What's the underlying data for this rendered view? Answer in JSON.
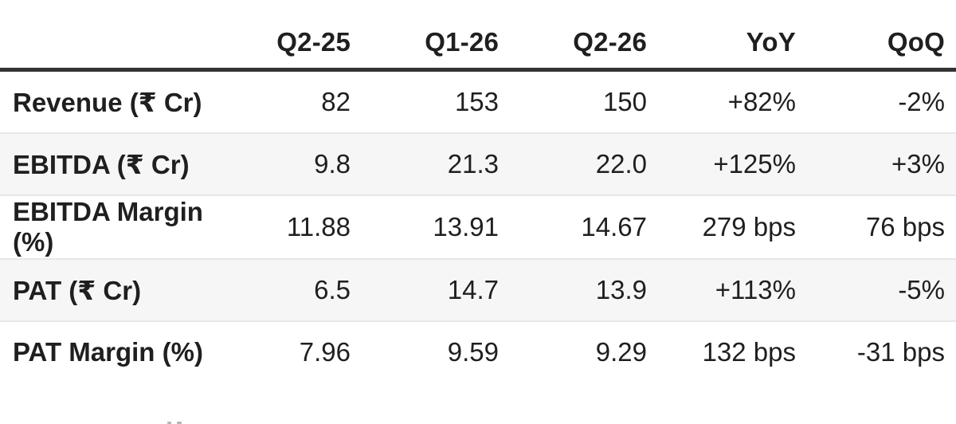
{
  "colors": {
    "page_bg": "#ffffff",
    "text": "#1f1f1f",
    "header_rule": "#333333",
    "row_divider": "#e7e7e7",
    "zebra_row_bg": "#f6f6f6"
  },
  "chart_data": {
    "type": "table",
    "columns": [
      "",
      "Q2-25",
      "Q1-26",
      "Q2-26",
      "YoY",
      "QoQ"
    ],
    "rows": [
      {
        "label": "Revenue (₹ Cr)",
        "values": [
          "82",
          "153",
          "150",
          "+82%",
          "-2%"
        ]
      },
      {
        "label": "EBITDA (₹ Cr)",
        "values": [
          "9.8",
          "21.3",
          "22.0",
          "+125%",
          "+3%"
        ]
      },
      {
        "label": "EBITDA Margin (%)",
        "values": [
          "11.88",
          "13.91",
          "14.67",
          "279 bps",
          "76 bps"
        ]
      },
      {
        "label": "PAT (₹ Cr)",
        "values": [
          "6.5",
          "14.7",
          "13.9",
          "+113%",
          "-5%"
        ]
      },
      {
        "label": "PAT Margin (%)",
        "values": [
          "7.96",
          "9.59",
          "9.29",
          "132 bps",
          "-31 bps"
        ]
      }
    ]
  }
}
